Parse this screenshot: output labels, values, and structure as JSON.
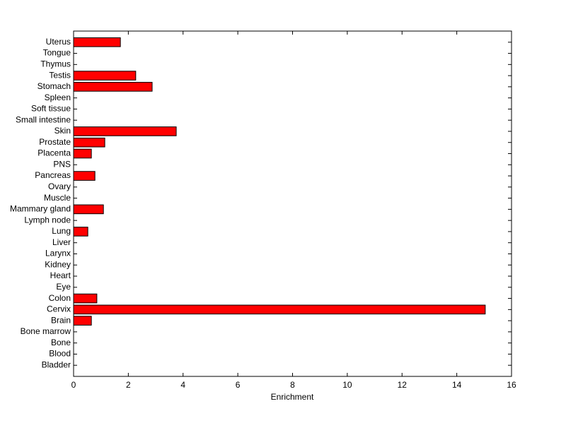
{
  "chart_data": {
    "type": "hbar",
    "xlabel": "Enrichment",
    "categories": [
      "Bladder",
      "Blood",
      "Bone",
      "Bone marrow",
      "Brain",
      "Cervix",
      "Colon",
      "Eye",
      "Heart",
      "Kidney",
      "Larynx",
      "Liver",
      "Lung",
      "Lymph node",
      "Mammary gland",
      "Muscle",
      "Ovary",
      "Pancreas",
      "PNS",
      "Placenta",
      "Prostate",
      "Skin",
      "Small intestine",
      "Soft tissue",
      "Spleen",
      "Stomach",
      "Testis",
      "Thymus",
      "Tongue",
      "Uterus"
    ],
    "values": [
      0,
      0,
      0,
      0,
      0.65,
      15.04,
      0.85,
      0,
      0,
      0,
      0,
      0,
      0.52,
      0,
      1.09,
      0,
      0,
      0.78,
      0,
      0.65,
      1.14,
      3.75,
      0,
      0,
      0,
      2.87,
      2.27,
      0,
      0,
      1.71
    ],
    "color": "#ff0000",
    "xlim": [
      0,
      16
    ],
    "xticks": [
      0,
      2,
      4,
      6,
      8,
      10,
      12,
      14,
      16
    ]
  }
}
